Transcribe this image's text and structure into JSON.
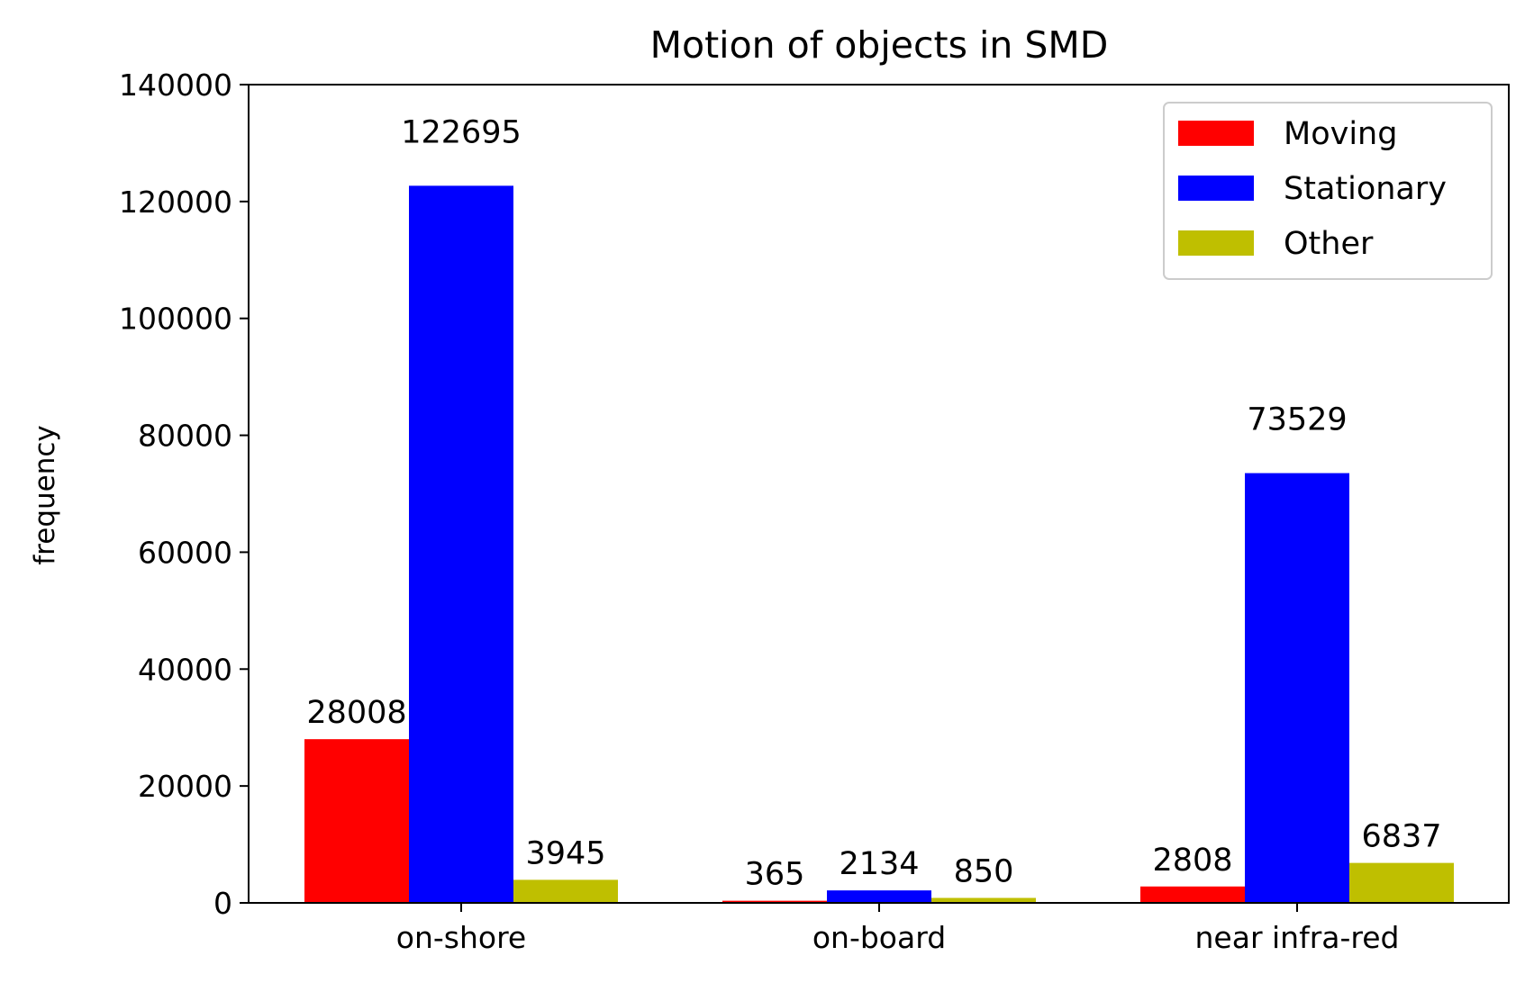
{
  "chart_data": {
    "type": "bar",
    "title": "Motion of objects in SMD",
    "xlabel": "",
    "ylabel": "frequency",
    "categories": [
      "on-shore",
      "on-board",
      "near infra-red"
    ],
    "series": [
      {
        "name": "Moving",
        "color": "#ff0000",
        "values": [
          28008,
          365,
          2808
        ]
      },
      {
        "name": "Stationary",
        "color": "#0000ff",
        "values": [
          122695,
          2134,
          73529
        ]
      },
      {
        "name": "Other",
        "color": "#bfbf00",
        "values": [
          3945,
          850,
          6837
        ]
      }
    ],
    "ylim": [
      0,
      140000
    ],
    "yticks": [
      "0",
      "20000",
      "40000",
      "60000",
      "80000",
      "100000",
      "120000",
      "140000"
    ],
    "grid": false,
    "legend_position": "top-right"
  }
}
